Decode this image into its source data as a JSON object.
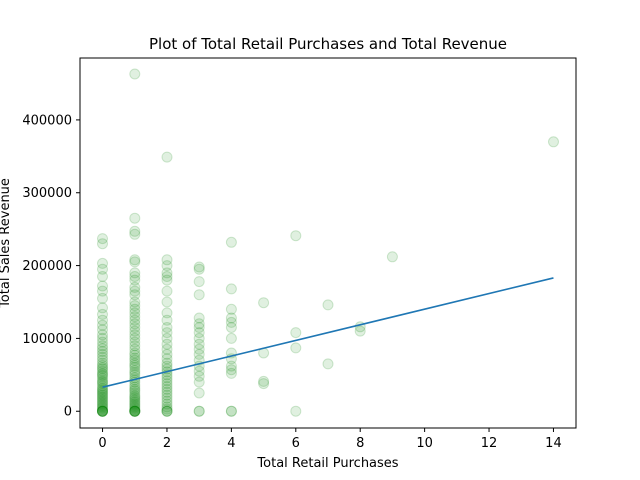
{
  "chart_data": {
    "type": "scatter",
    "title": "Plot of Total Retail Purchases and Total Revenue",
    "xlabel": "Total Retail Purchases",
    "ylabel": "Total Sales Revenue",
    "xlim": [
      -0.7,
      14.7
    ],
    "ylim": [
      -23000,
      485000
    ],
    "xticks": [
      0,
      2,
      4,
      6,
      8,
      10,
      12,
      14
    ],
    "yticks": [
      0,
      100000,
      200000,
      300000,
      400000
    ],
    "grid": false,
    "point_color": "#008000",
    "line_color": "#1f77b4",
    "points": [
      [
        0,
        0
      ],
      [
        0,
        0
      ],
      [
        0,
        0
      ],
      [
        0,
        0
      ],
      [
        0,
        0
      ],
      [
        0,
        0
      ],
      [
        0,
        2000
      ],
      [
        0,
        4000
      ],
      [
        0,
        6000
      ],
      [
        0,
        8000
      ],
      [
        0,
        10000
      ],
      [
        0,
        12000
      ],
      [
        0,
        14000
      ],
      [
        0,
        16000
      ],
      [
        0,
        18000
      ],
      [
        0,
        20000
      ],
      [
        0,
        22000
      ],
      [
        0,
        24000
      ],
      [
        0,
        26000
      ],
      [
        0,
        28000
      ],
      [
        0,
        30000
      ],
      [
        0,
        32000
      ],
      [
        0,
        35000
      ],
      [
        0,
        38000
      ],
      [
        0,
        40000
      ],
      [
        0,
        42000
      ],
      [
        0,
        45000
      ],
      [
        0,
        48000
      ],
      [
        0,
        50000
      ],
      [
        0,
        52000
      ],
      [
        0,
        55000
      ],
      [
        0,
        58000
      ],
      [
        0,
        60000
      ],
      [
        0,
        63000
      ],
      [
        0,
        66000
      ],
      [
        0,
        70000
      ],
      [
        0,
        74000
      ],
      [
        0,
        78000
      ],
      [
        0,
        82000
      ],
      [
        0,
        86000
      ],
      [
        0,
        90000
      ],
      [
        0,
        95000
      ],
      [
        0,
        100000
      ],
      [
        0,
        105000
      ],
      [
        0,
        112000
      ],
      [
        0,
        118000
      ],
      [
        0,
        125000
      ],
      [
        0,
        133000
      ],
      [
        0,
        142000
      ],
      [
        0,
        155000
      ],
      [
        0,
        165000
      ],
      [
        0,
        172000
      ],
      [
        0,
        185000
      ],
      [
        0,
        195000
      ],
      [
        0,
        203000
      ],
      [
        0,
        230000
      ],
      [
        0,
        237000
      ],
      [
        1,
        0
      ],
      [
        1,
        0
      ],
      [
        1,
        0
      ],
      [
        1,
        0
      ],
      [
        1,
        0
      ],
      [
        1,
        0
      ],
      [
        1,
        2000
      ],
      [
        1,
        4000
      ],
      [
        1,
        6000
      ],
      [
        1,
        8000
      ],
      [
        1,
        10000
      ],
      [
        1,
        12000
      ],
      [
        1,
        14000
      ],
      [
        1,
        16000
      ],
      [
        1,
        18000
      ],
      [
        1,
        20000
      ],
      [
        1,
        22000
      ],
      [
        1,
        25000
      ],
      [
        1,
        28000
      ],
      [
        1,
        30000
      ],
      [
        1,
        33000
      ],
      [
        1,
        36000
      ],
      [
        1,
        40000
      ],
      [
        1,
        43000
      ],
      [
        1,
        46000
      ],
      [
        1,
        50000
      ],
      [
        1,
        53000
      ],
      [
        1,
        56000
      ],
      [
        1,
        60000
      ],
      [
        1,
        63000
      ],
      [
        1,
        66000
      ],
      [
        1,
        70000
      ],
      [
        1,
        73000
      ],
      [
        1,
        77000
      ],
      [
        1,
        80000
      ],
      [
        1,
        85000
      ],
      [
        1,
        90000
      ],
      [
        1,
        95000
      ],
      [
        1,
        100000
      ],
      [
        1,
        105000
      ],
      [
        1,
        110000
      ],
      [
        1,
        115000
      ],
      [
        1,
        120000
      ],
      [
        1,
        125000
      ],
      [
        1,
        130000
      ],
      [
        1,
        135000
      ],
      [
        1,
        140000
      ],
      [
        1,
        145000
      ],
      [
        1,
        150000
      ],
      [
        1,
        160000
      ],
      [
        1,
        165000
      ],
      [
        1,
        170000
      ],
      [
        1,
        180000
      ],
      [
        1,
        185000
      ],
      [
        1,
        190000
      ],
      [
        1,
        205000
      ],
      [
        1,
        208000
      ],
      [
        1,
        243000
      ],
      [
        1,
        247000
      ],
      [
        1,
        265000
      ],
      [
        1,
        463000
      ],
      [
        2,
        0
      ],
      [
        2,
        0
      ],
      [
        2,
        0
      ],
      [
        2,
        3000
      ],
      [
        2,
        6000
      ],
      [
        2,
        10000
      ],
      [
        2,
        14000
      ],
      [
        2,
        18000
      ],
      [
        2,
        22000
      ],
      [
        2,
        26000
      ],
      [
        2,
        30000
      ],
      [
        2,
        34000
      ],
      [
        2,
        38000
      ],
      [
        2,
        42000
      ],
      [
        2,
        46000
      ],
      [
        2,
        50000
      ],
      [
        2,
        54000
      ],
      [
        2,
        58000
      ],
      [
        2,
        62000
      ],
      [
        2,
        66000
      ],
      [
        2,
        72000
      ],
      [
        2,
        78000
      ],
      [
        2,
        85000
      ],
      [
        2,
        92000
      ],
      [
        2,
        100000
      ],
      [
        2,
        108000
      ],
      [
        2,
        115000
      ],
      [
        2,
        125000
      ],
      [
        2,
        135000
      ],
      [
        2,
        150000
      ],
      [
        2,
        165000
      ],
      [
        2,
        180000
      ],
      [
        2,
        185000
      ],
      [
        2,
        190000
      ],
      [
        2,
        200000
      ],
      [
        2,
        208000
      ],
      [
        2,
        349000
      ],
      [
        3,
        0
      ],
      [
        3,
        0
      ],
      [
        3,
        25000
      ],
      [
        3,
        40000
      ],
      [
        3,
        48000
      ],
      [
        3,
        55000
      ],
      [
        3,
        62000
      ],
      [
        3,
        70000
      ],
      [
        3,
        78000
      ],
      [
        3,
        85000
      ],
      [
        3,
        92000
      ],
      [
        3,
        100000
      ],
      [
        3,
        108000
      ],
      [
        3,
        115000
      ],
      [
        3,
        120000
      ],
      [
        3,
        128000
      ],
      [
        3,
        160000
      ],
      [
        3,
        178000
      ],
      [
        3,
        195000
      ],
      [
        3,
        198000
      ],
      [
        4,
        0
      ],
      [
        4,
        0
      ],
      [
        4,
        52000
      ],
      [
        4,
        57000
      ],
      [
        4,
        62000
      ],
      [
        4,
        72000
      ],
      [
        4,
        80000
      ],
      [
        4,
        100000
      ],
      [
        4,
        115000
      ],
      [
        4,
        122000
      ],
      [
        4,
        128000
      ],
      [
        4,
        140000
      ],
      [
        4,
        168000
      ],
      [
        4,
        232000
      ],
      [
        5,
        38000
      ],
      [
        5,
        41000
      ],
      [
        5,
        80000
      ],
      [
        5,
        149000
      ],
      [
        6,
        0
      ],
      [
        6,
        87000
      ],
      [
        6,
        108000
      ],
      [
        6,
        241000
      ],
      [
        7,
        65000
      ],
      [
        7,
        146000
      ],
      [
        8,
        110000
      ],
      [
        8,
        116000
      ],
      [
        9,
        212000
      ],
      [
        14,
        370000
      ]
    ],
    "trend_line": {
      "x": [
        0,
        14
      ],
      "y": [
        33000,
        183000
      ]
    }
  }
}
